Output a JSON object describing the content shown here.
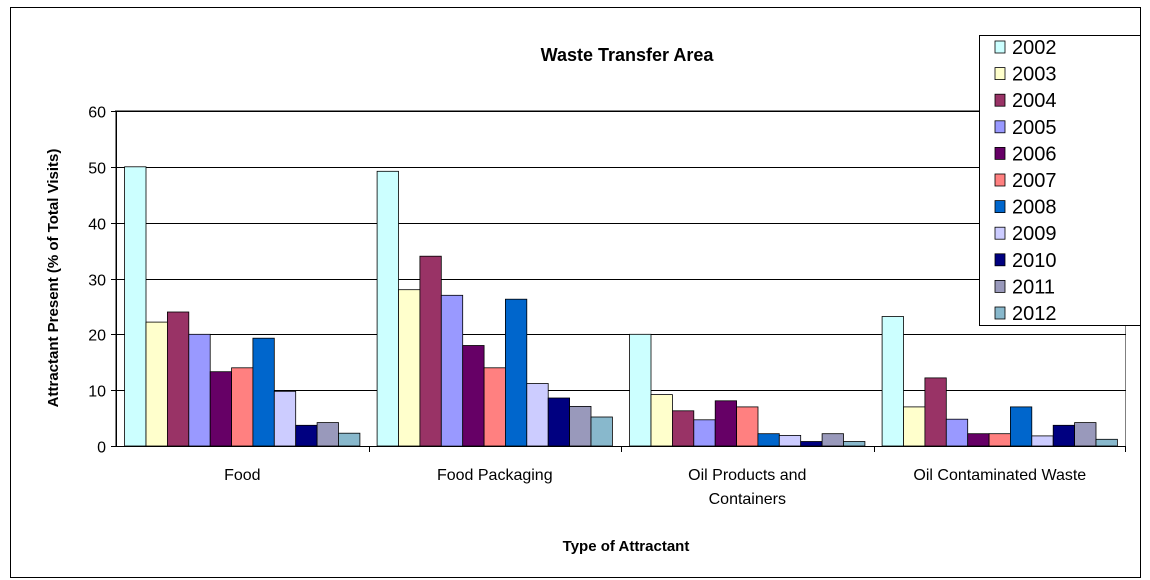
{
  "chart_data": {
    "type": "bar",
    "title": "Waste Transfer Area",
    "xlabel": "Type of Attractant",
    "ylabel": "Attractant Present (% of Total Visits)",
    "ylim": [
      0,
      60
    ],
    "yticks": [
      "0",
      "10",
      "20",
      "30",
      "40",
      "50",
      "60"
    ],
    "grid": true,
    "legend_position": "top-right",
    "categories": [
      [
        "Food"
      ],
      [
        "Food Packaging"
      ],
      [
        "Oil Products and",
        "Containers"
      ],
      [
        "Oil Contaminated Waste"
      ]
    ],
    "series": [
      {
        "name": "2002",
        "color": "#ccffff",
        "values": [
          50,
          49.2,
          20,
          23.2
        ]
      },
      {
        "name": "2003",
        "color": "#ffffcc",
        "values": [
          22.2,
          28,
          9.2,
          7
        ]
      },
      {
        "name": "2004",
        "color": "#993366",
        "values": [
          24,
          34,
          6.3,
          12.2
        ]
      },
      {
        "name": "2005",
        "color": "#9999ff",
        "values": [
          20,
          27,
          4.7,
          4.8
        ]
      },
      {
        "name": "2006",
        "color": "#660066",
        "values": [
          13.3,
          18,
          8.1,
          2.2
        ]
      },
      {
        "name": "2007",
        "color": "#ff8080",
        "values": [
          14,
          14,
          7,
          2.2
        ]
      },
      {
        "name": "2008",
        "color": "#0066cc",
        "values": [
          19.3,
          26.3,
          2.2,
          7
        ]
      },
      {
        "name": "2009",
        "color": "#ccccff",
        "values": [
          9.8,
          11.2,
          1.9,
          1.8
        ]
      },
      {
        "name": "2010",
        "color": "#000080",
        "values": [
          3.7,
          8.6,
          0.8,
          3.7
        ]
      },
      {
        "name": "2011",
        "color": "#9999bb",
        "values": [
          4.2,
          7.1,
          2.2,
          4.2
        ]
      },
      {
        "name": "2012",
        "color": "#88b8cc",
        "values": [
          2.3,
          5.2,
          0.8,
          1.2
        ]
      }
    ]
  }
}
